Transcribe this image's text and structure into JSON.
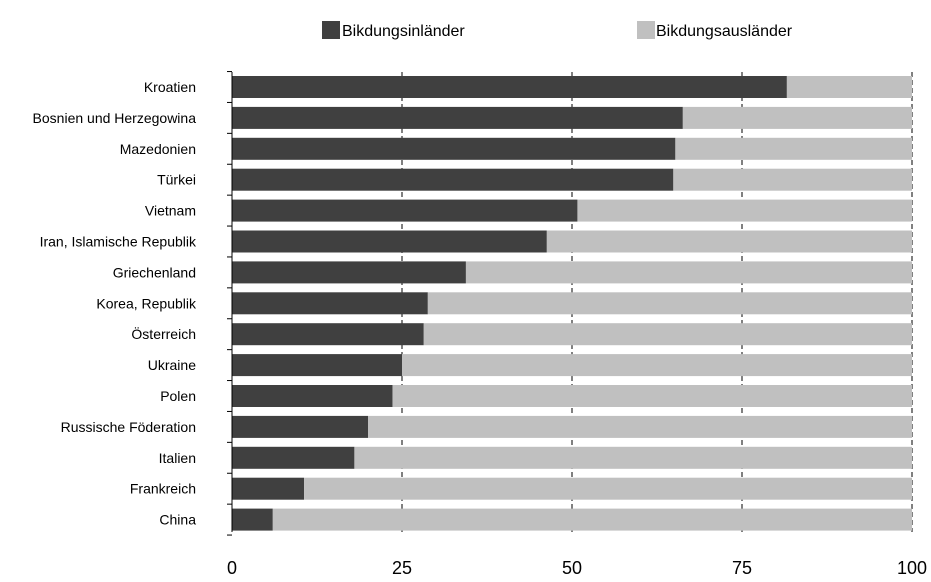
{
  "chart_data": {
    "type": "bar",
    "orientation": "horizontal",
    "stacked": true,
    "title": "",
    "xlabel": "",
    "ylabel": "",
    "xlim": [
      0,
      100
    ],
    "x_ticks": [
      0,
      25,
      50,
      75,
      100
    ],
    "grid": "vertical gridlines at 25, 50, 75 and 100",
    "legend_position": "top",
    "categories": [
      "Kroatien",
      "Bosnien und Herzegowina",
      "Mazedonien",
      "Türkei",
      "Vietnam",
      "Iran, Islamische Republik",
      "Griechenland",
      "Korea, Republik",
      "Österreich",
      "Ukraine",
      "Polen",
      "Russische Föderation",
      "Italien",
      "Frankreich",
      "China"
    ],
    "series": [
      {
        "name": "Bikdungsinländer",
        "color": "#404040",
        "values": [
          81.6,
          66.3,
          65.2,
          64.9,
          50.8,
          46.3,
          34.4,
          28.8,
          28.2,
          25.0,
          23.6,
          20.0,
          18.0,
          10.6,
          6.0
        ]
      },
      {
        "name": "Bikdungsausländer",
        "color": "#c0c0c0",
        "values": [
          18.4,
          33.7,
          34.8,
          35.1,
          49.2,
          53.7,
          65.6,
          71.2,
          71.8,
          75.0,
          76.4,
          80.0,
          82.0,
          89.4,
          94.0
        ]
      }
    ]
  }
}
